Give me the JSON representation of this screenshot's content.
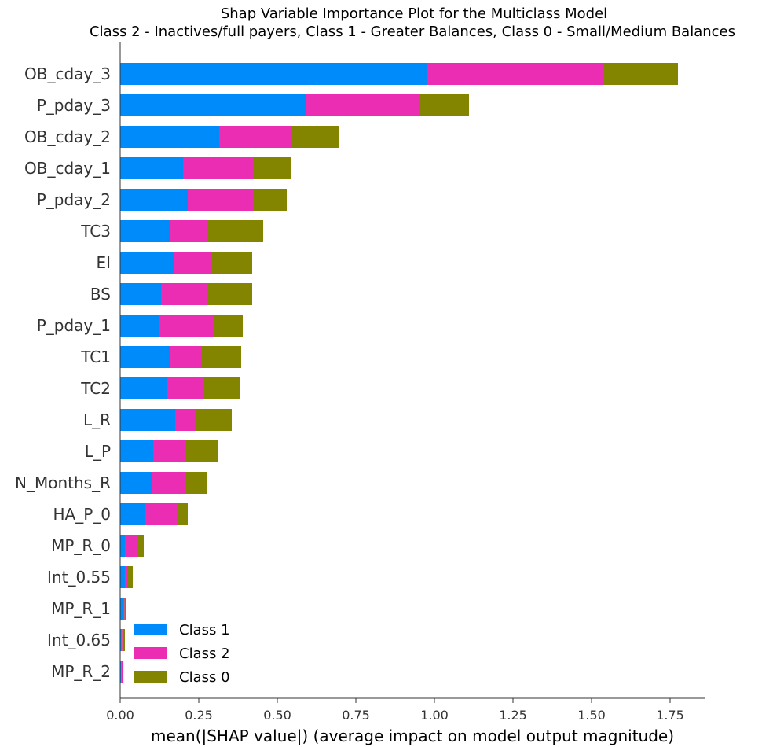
{
  "chart_data": {
    "type": "bar",
    "stacked": true,
    "orientation": "horizontal",
    "title_line1": "Shap Variable Importance Plot for the Multiclass Model",
    "title_line2": "Class 2 - Inactives/full payers, Class 1 - Greater Balances, Class 0 - Small/Medium Balances",
    "xlabel": "mean(|SHAP value|) (average impact on model output magnitude)",
    "ylabel": "",
    "xlim": [
      0,
      1.86
    ],
    "xticks": [
      0.0,
      0.25,
      0.5,
      0.75,
      1.0,
      1.25,
      1.5,
      1.75
    ],
    "xtick_labels": [
      "0.00",
      "0.25",
      "0.50",
      "0.75",
      "1.00",
      "1.25",
      "1.50",
      "1.75"
    ],
    "grid": false,
    "legend_position": "lower-left",
    "categories": [
      "OB_cday_3",
      "P_pday_3",
      "OB_cday_2",
      "OB_cday_1",
      "P_pday_2",
      "TC3",
      "EI",
      "BS",
      "P_pday_1",
      "TC1",
      "TC2",
      "L_R",
      "L_P",
      "N_Months_R",
      "HA_P_0",
      "MP_R_0",
      "Int_0.55",
      "MP_R_1",
      "Int_0.65",
      "MP_R_2"
    ],
    "series": [
      {
        "name": "Class 1",
        "color": "#008bfb",
        "values": [
          0.975,
          0.59,
          0.315,
          0.2,
          0.215,
          0.16,
          0.17,
          0.13,
          0.125,
          0.16,
          0.15,
          0.175,
          0.105,
          0.1,
          0.08,
          0.015,
          0.015,
          0.008,
          0.004,
          0.003
        ]
      },
      {
        "name": "Class 2",
        "color": "#ea2db3",
        "values": [
          0.565,
          0.365,
          0.23,
          0.225,
          0.21,
          0.12,
          0.12,
          0.15,
          0.17,
          0.1,
          0.115,
          0.065,
          0.1,
          0.105,
          0.1,
          0.04,
          0.01,
          0.006,
          0.003,
          0.006
        ]
      },
      {
        "name": "Class 0",
        "color": "#838500",
        "values": [
          0.235,
          0.155,
          0.15,
          0.12,
          0.105,
          0.175,
          0.13,
          0.14,
          0.095,
          0.125,
          0.115,
          0.115,
          0.105,
          0.07,
          0.035,
          0.02,
          0.015,
          0.004,
          0.008,
          0.001
        ]
      }
    ],
    "legend_order": [
      "Class 1",
      "Class 2",
      "Class 0"
    ]
  }
}
